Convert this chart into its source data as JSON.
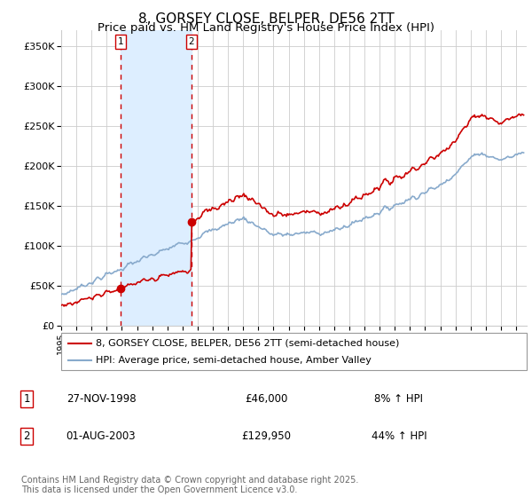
{
  "title": "8, GORSEY CLOSE, BELPER, DE56 2TT",
  "subtitle": "Price paid vs. HM Land Registry's House Price Index (HPI)",
  "ylim": [
    0,
    370000
  ],
  "yticks": [
    0,
    50000,
    100000,
    150000,
    200000,
    250000,
    300000,
    350000
  ],
  "ytick_labels": [
    "£0",
    "£50K",
    "£100K",
    "£150K",
    "£200K",
    "£250K",
    "£300K",
    "£350K"
  ],
  "background_color": "#ffffff",
  "plot_bg_color": "#ffffff",
  "grid_color": "#cccccc",
  "purchase1": {
    "date_num": 1998.92,
    "price": 46000,
    "label": "1"
  },
  "purchase2": {
    "date_num": 2003.58,
    "price": 129950,
    "label": "2"
  },
  "shade_color": "#ddeeff",
  "dashed_line_color": "#cc0000",
  "property_line_color": "#cc0000",
  "hpi_line_color": "#88aacc",
  "legend_label1": "8, GORSEY CLOSE, BELPER, DE56 2TT (semi-detached house)",
  "legend_label2": "HPI: Average price, semi-detached house, Amber Valley",
  "table_rows": [
    {
      "num": "1",
      "date": "27-NOV-1998",
      "price": "£46,000",
      "hpi": "8% ↑ HPI"
    },
    {
      "num": "2",
      "date": "01-AUG-2003",
      "price": "£129,950",
      "hpi": "44% ↑ HPI"
    }
  ],
  "footnote": "Contains HM Land Registry data © Crown copyright and database right 2025.\nThis data is licensed under the Open Government Licence v3.0.",
  "title_fontsize": 11,
  "subtitle_fontsize": 9.5,
  "tick_fontsize": 8,
  "legend_fontsize": 8,
  "table_fontsize": 8.5,
  "footnote_fontsize": 7
}
